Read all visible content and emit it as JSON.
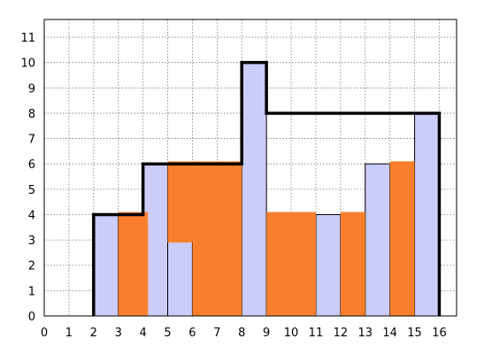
{
  "chart_data": {
    "type": "bar",
    "title": "",
    "xlabel": "",
    "ylabel": "",
    "xlim": [
      0,
      16.7
    ],
    "ylim": [
      0,
      11.7
    ],
    "xticks": [
      "0",
      "1",
      "2",
      "3",
      "4",
      "5",
      "6",
      "7",
      "8",
      "9",
      "10",
      "11",
      "12",
      "13",
      "14",
      "15",
      "16"
    ],
    "yticks": [
      "0",
      "1",
      "2",
      "3",
      "4",
      "5",
      "6",
      "7",
      "8",
      "9",
      "10",
      "11"
    ],
    "grid": true,
    "legend": "none",
    "colors": {
      "bars": "#ccccf8",
      "overlay": "#f97f2c",
      "skyline": "#000000",
      "grid": "#7a7a7a"
    },
    "series": [
      {
        "kind": "bars",
        "values": [
          {
            "x0": 2,
            "x1": 3,
            "y": 4
          },
          {
            "x0": 4,
            "x1": 5,
            "y": 6
          },
          {
            "x0": 5,
            "x1": 6,
            "y": 3
          },
          {
            "x0": 8,
            "x1": 9,
            "y": 10
          },
          {
            "x0": 11,
            "x1": 12,
            "y": 4
          },
          {
            "x0": 13,
            "x1": 14,
            "y": 6
          },
          {
            "x0": 15,
            "x1": 16,
            "y": 8
          }
        ]
      },
      {
        "kind": "overlay-bars",
        "values": [
          {
            "x0": 3,
            "x1": 4.2,
            "y0": 0,
            "y1": 4.1
          },
          {
            "x0": 5,
            "x1": 6,
            "y0": 2.9,
            "y1": 6.1
          },
          {
            "x0": 6,
            "x1": 8,
            "y0": 0,
            "y1": 6.1
          },
          {
            "x0": 9,
            "x1": 11,
            "y0": 0,
            "y1": 4.1
          },
          {
            "x0": 12,
            "x1": 13,
            "y0": 0,
            "y1": 4.1
          },
          {
            "x0": 14,
            "x1": 15,
            "y0": 0,
            "y1": 6.1
          }
        ]
      },
      {
        "kind": "skyline",
        "points": [
          [
            2,
            0
          ],
          [
            2,
            4
          ],
          [
            4,
            4
          ],
          [
            4,
            6
          ],
          [
            8,
            6
          ],
          [
            8,
            10
          ],
          [
            9,
            10
          ],
          [
            9,
            8
          ],
          [
            16,
            8
          ],
          [
            16,
            0
          ]
        ]
      }
    ]
  }
}
